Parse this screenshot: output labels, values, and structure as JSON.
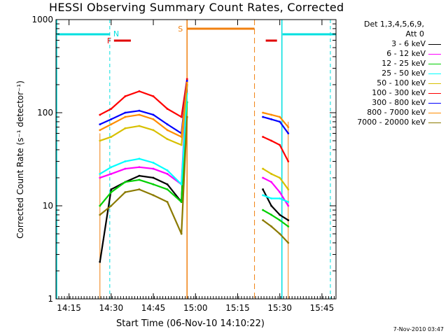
{
  "title": "HESSI Observing Summary Count Rates, Corrected",
  "xlabel": "Start Time (06-Nov-10 14:10:22)",
  "footer_stamp": "7-Nov-2010 03:47",
  "legend_header": [
    "Det 1,3,4,5,6,9,",
    "Att 0"
  ],
  "annotations": {
    "flags": [
      {
        "label": "N",
        "color": "#00e0e0"
      },
      {
        "label": "F",
        "color": "#e00000"
      },
      {
        "label": "S",
        "color": "#f08010"
      }
    ]
  },
  "chart_data": {
    "type": "line",
    "title": "HESSI Observing Summary Count Rates, Corrected",
    "xlabel": "Start Time (06-Nov-10 14:10:22)",
    "ylabel": "Corrected Count Rate (s⁻¹ detector⁻¹)",
    "y_scale": "log",
    "xlim": [
      "14:10:22",
      "15:50:00"
    ],
    "ylim": [
      1,
      1000
    ],
    "x_ticks": [
      "14:15",
      "14:30",
      "14:45",
      "15:00",
      "15:15",
      "15:30",
      "15:45"
    ],
    "y_ticks": [
      "1",
      "10",
      "100",
      "1000"
    ],
    "x": [
      "14:26",
      "14:30",
      "14:35",
      "14:40",
      "14:45",
      "14:50",
      "14:55",
      "14:57",
      "15:24",
      "15:27",
      "15:30",
      "15:33"
    ],
    "series": [
      {
        "name": "3 - 6 keV",
        "color": "#000000",
        "values": [
          2.5,
          15,
          18,
          21,
          20,
          17,
          11,
          200,
          15,
          10,
          8,
          7
        ]
      },
      {
        "name": "6 - 12 keV",
        "color": "#ff00ff",
        "values": [
          20,
          22,
          25,
          26,
          25,
          22,
          17,
          230,
          20,
          18,
          14,
          10
        ]
      },
      {
        "name": "12 - 25 keV",
        "color": "#00d000",
        "values": [
          10,
          14,
          18,
          19,
          17,
          15,
          11,
          130,
          9,
          8,
          7,
          6
        ]
      },
      {
        "name": "25 - 50 keV",
        "color": "#00ffff",
        "values": [
          22,
          26,
          30,
          32,
          29,
          24,
          17,
          160,
          13,
          12,
          12,
          11
        ]
      },
      {
        "name": "50 - 100 keV",
        "color": "#d8c000",
        "values": [
          50,
          55,
          68,
          72,
          65,
          52,
          45,
          200,
          25,
          22,
          20,
          15
        ]
      },
      {
        "name": "100 - 300 keV",
        "color": "#ff0000",
        "values": [
          95,
          110,
          150,
          170,
          150,
          110,
          90,
          230,
          55,
          50,
          45,
          30
        ]
      },
      {
        "name": "300 - 800 keV",
        "color": "#0000ff",
        "values": [
          75,
          85,
          100,
          105,
          95,
          75,
          60,
          220,
          90,
          85,
          80,
          60
        ]
      },
      {
        "name": "800 - 7000 keV",
        "color": "#ff8c00",
        "values": [
          65,
          75,
          90,
          95,
          85,
          65,
          55,
          210,
          100,
          95,
          90,
          70
        ]
      },
      {
        "name": "7000 - 20000 keV",
        "color": "#8b7a00",
        "values": [
          8,
          10,
          14,
          15,
          13,
          11,
          5,
          90,
          7,
          6,
          5,
          4
        ]
      }
    ],
    "grid": false,
    "legend_position": "right"
  }
}
